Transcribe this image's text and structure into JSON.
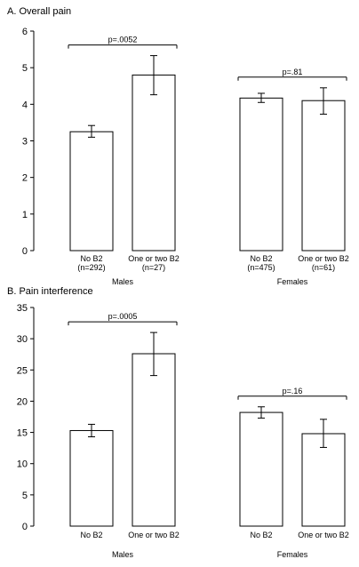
{
  "chart_data": [
    {
      "type": "bar",
      "title": "A. Overall pain",
      "ylim": [
        0,
        6
      ],
      "yticks": [
        0,
        1,
        2,
        3,
        4,
        5,
        6
      ],
      "grid": false,
      "groups": [
        {
          "name": "Males",
          "pvalue": "p=.0052",
          "bars": [
            {
              "label": "No B2",
              "n": "(n=292)",
              "value": 3.25,
              "err": [
                3.1,
                3.42
              ]
            },
            {
              "label": "One or two B2",
              "n": "(n=27)",
              "value": 4.8,
              "err": [
                4.26,
                5.33
              ]
            }
          ]
        },
        {
          "name": "Females",
          "pvalue": "p=.81",
          "bars": [
            {
              "label": "No B2",
              "n": "(n=475)",
              "value": 4.17,
              "err": [
                4.05,
                4.3
              ]
            },
            {
              "label": "One or two B2",
              "n": "(n=61)",
              "value": 4.1,
              "err": [
                3.73,
                4.45
              ]
            }
          ]
        }
      ]
    },
    {
      "type": "bar",
      "title": "B. Pain interference",
      "ylim": [
        0,
        35
      ],
      "yticks": [
        0,
        5,
        10,
        15,
        20,
        25,
        30,
        35
      ],
      "grid": false,
      "groups": [
        {
          "name": "Males",
          "pvalue": "p=.0005",
          "bars": [
            {
              "label": "No B2",
              "n": "",
              "value": 15.3,
              "err": [
                14.3,
                16.3
              ]
            },
            {
              "label": "One or two B2",
              "n": "",
              "value": 27.6,
              "err": [
                24.1,
                31.0
              ]
            }
          ]
        },
        {
          "name": "Females",
          "pvalue": "p=.16",
          "bars": [
            {
              "label": "No B2",
              "n": "",
              "value": 18.2,
              "err": [
                17.3,
                19.1
              ]
            },
            {
              "label": "One or two B2",
              "n": "",
              "value": 14.8,
              "err": [
                12.6,
                17.1
              ]
            }
          ]
        }
      ]
    }
  ]
}
